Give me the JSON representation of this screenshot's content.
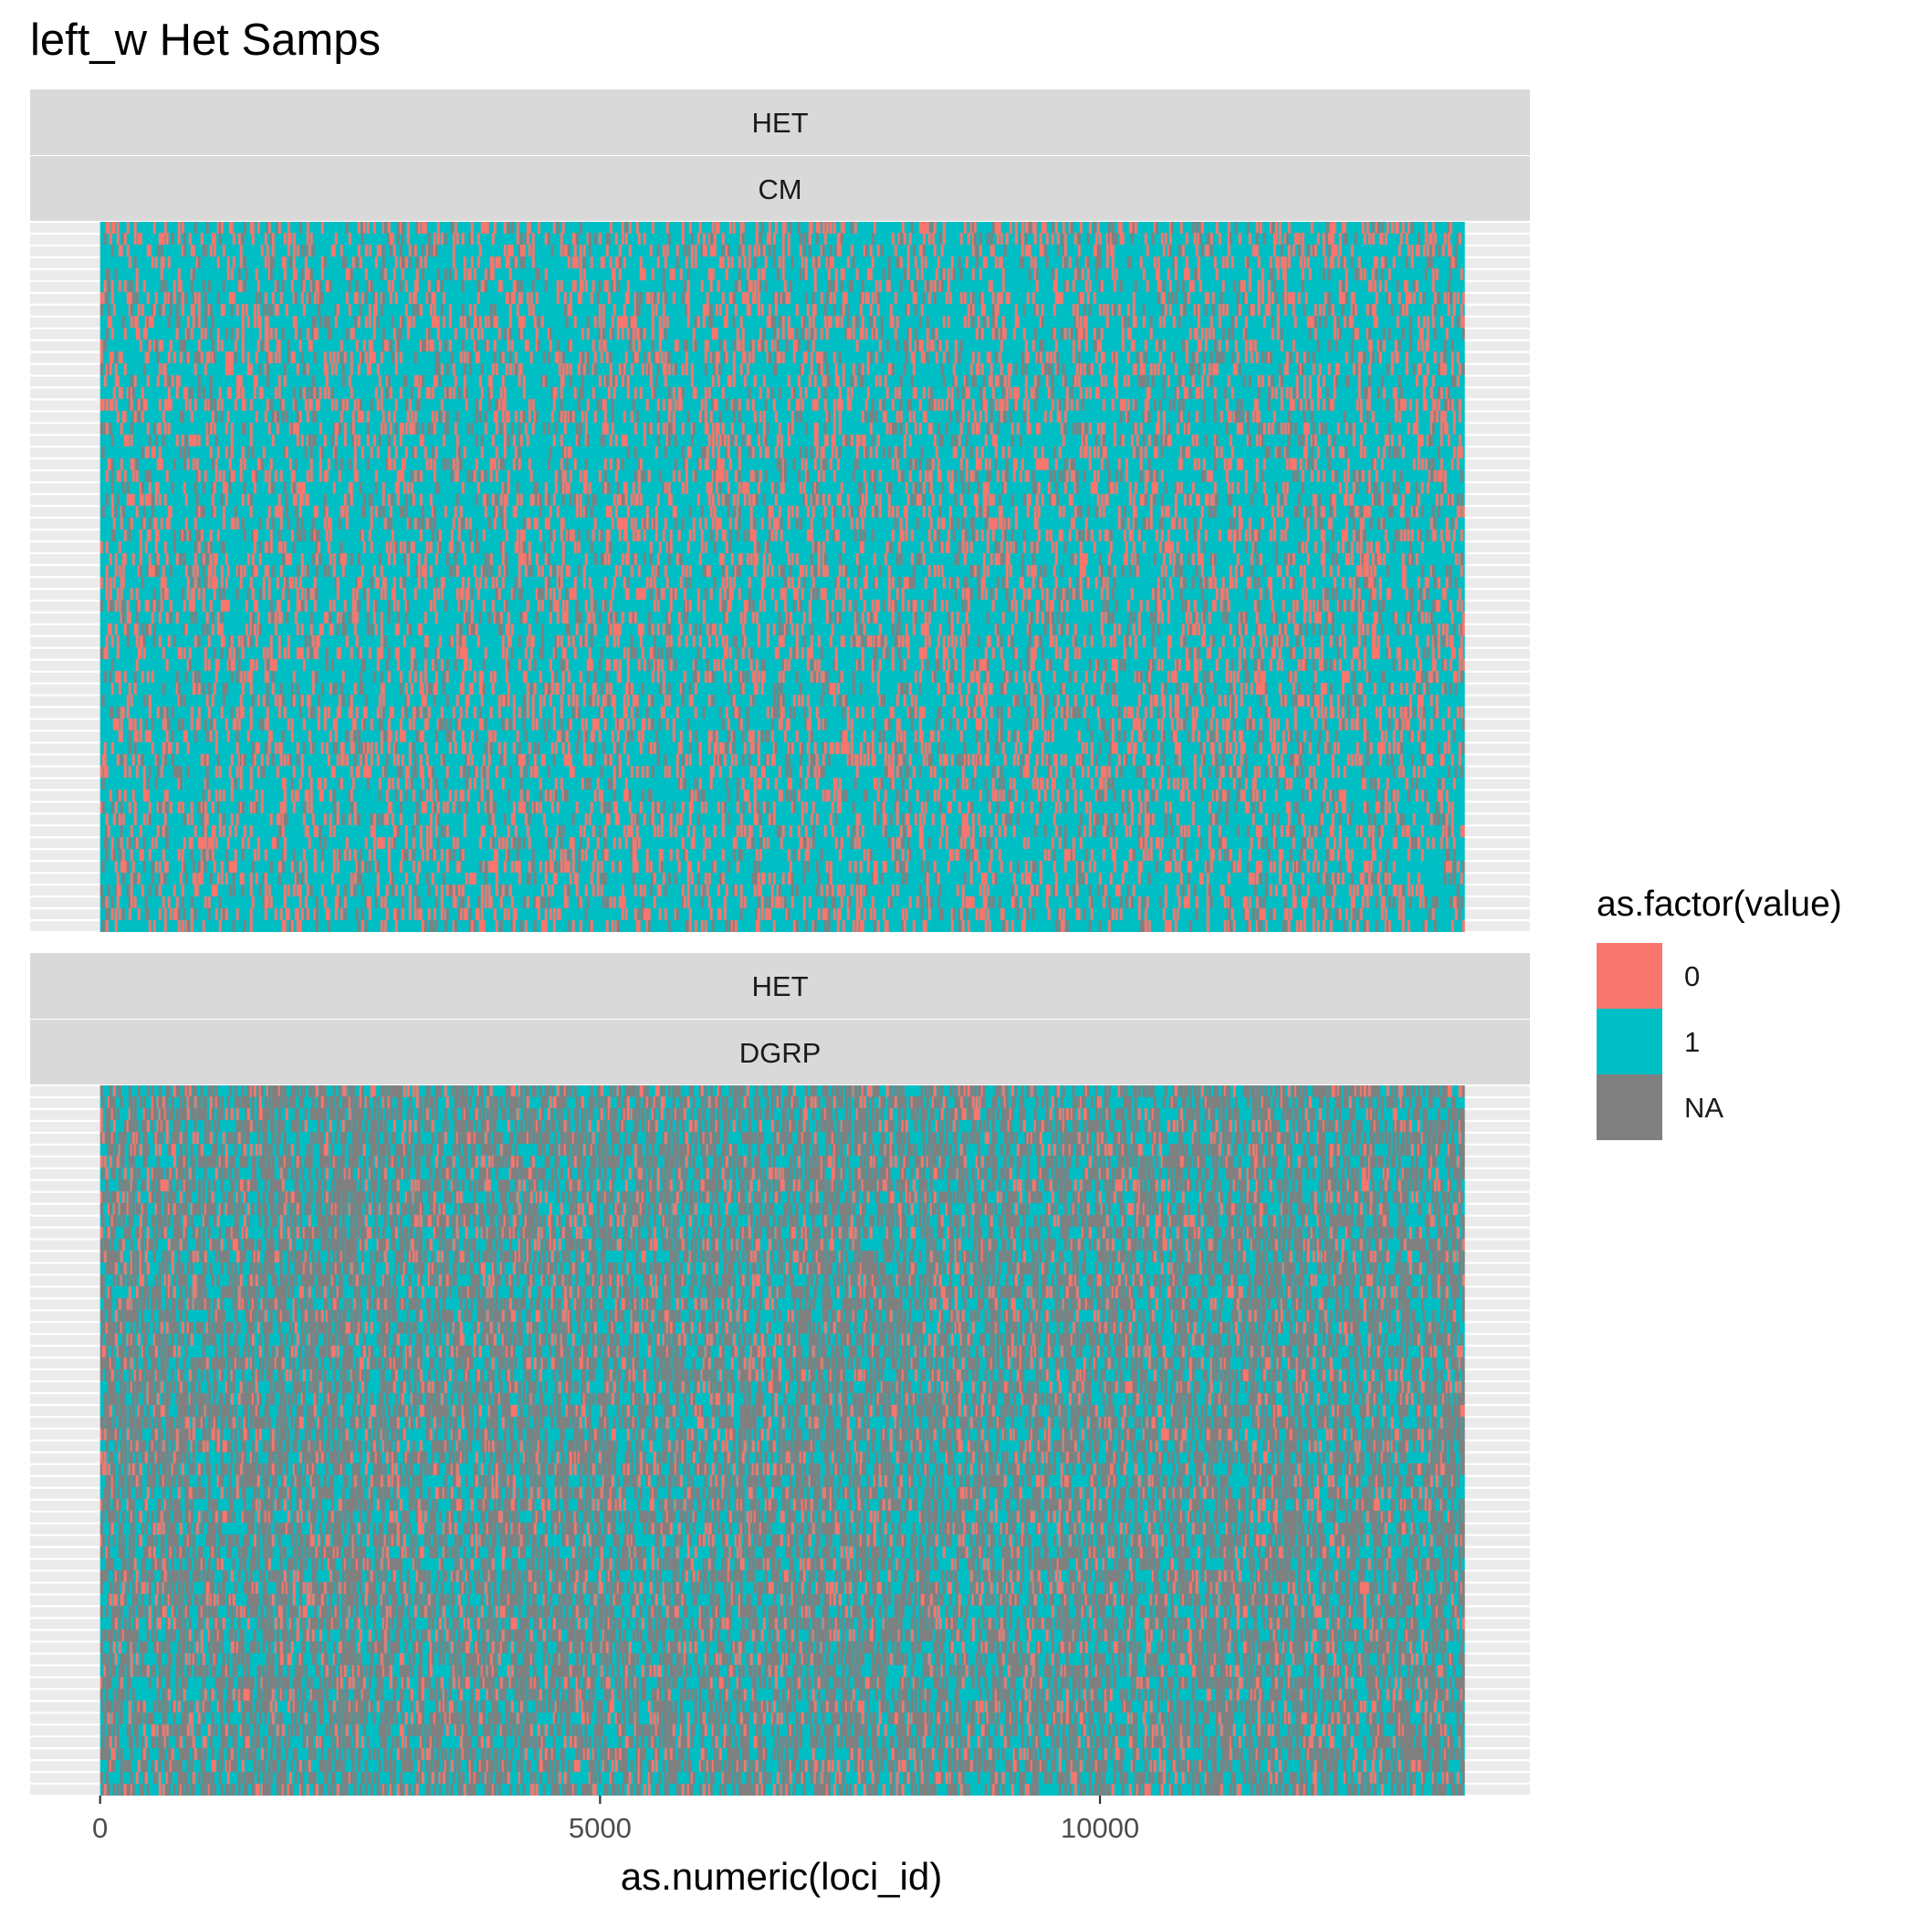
{
  "chart_data": {
    "type": "heatmap",
    "title": "left_w Het Samps",
    "xlabel": "as.numeric(loci_id)",
    "ylabel": "",
    "xlim": [
      -700,
      14300
    ],
    "x_ticks": [
      0,
      5000,
      10000
    ],
    "x_tick_labels": [
      "0",
      "5000",
      "10000"
    ],
    "x_data_range": [
      0,
      13650
    ],
    "grid": true,
    "legend": {
      "title": "as.factor(value)",
      "position": "right",
      "entries": [
        {
          "label": "0",
          "color": "#F8766D"
        },
        {
          "label": "1",
          "color": "#00BFC4"
        },
        {
          "label": "NA",
          "color": "#808080"
        }
      ]
    },
    "panels": [
      {
        "strip_top": "HET",
        "strip_bottom": "CM",
        "approx_rows": 60,
        "dominant_value": "1",
        "composition_estimate": {
          "0": 0.22,
          "1": 0.7,
          "NA": 0.08
        }
      },
      {
        "strip_top": "HET",
        "strip_bottom": "DGRP",
        "approx_rows": 60,
        "dominant_value": "mixed 1/NA",
        "composition_estimate": {
          "0": 0.12,
          "1": 0.48,
          "NA": 0.4
        }
      }
    ]
  },
  "colors": {
    "panel_bg": "#EBEBEB",
    "strip_bg": "#D9D9D9",
    "grid_line": "#FFFFFF",
    "text": "#1A1A1A",
    "tick_text": "#4D4D4D"
  }
}
